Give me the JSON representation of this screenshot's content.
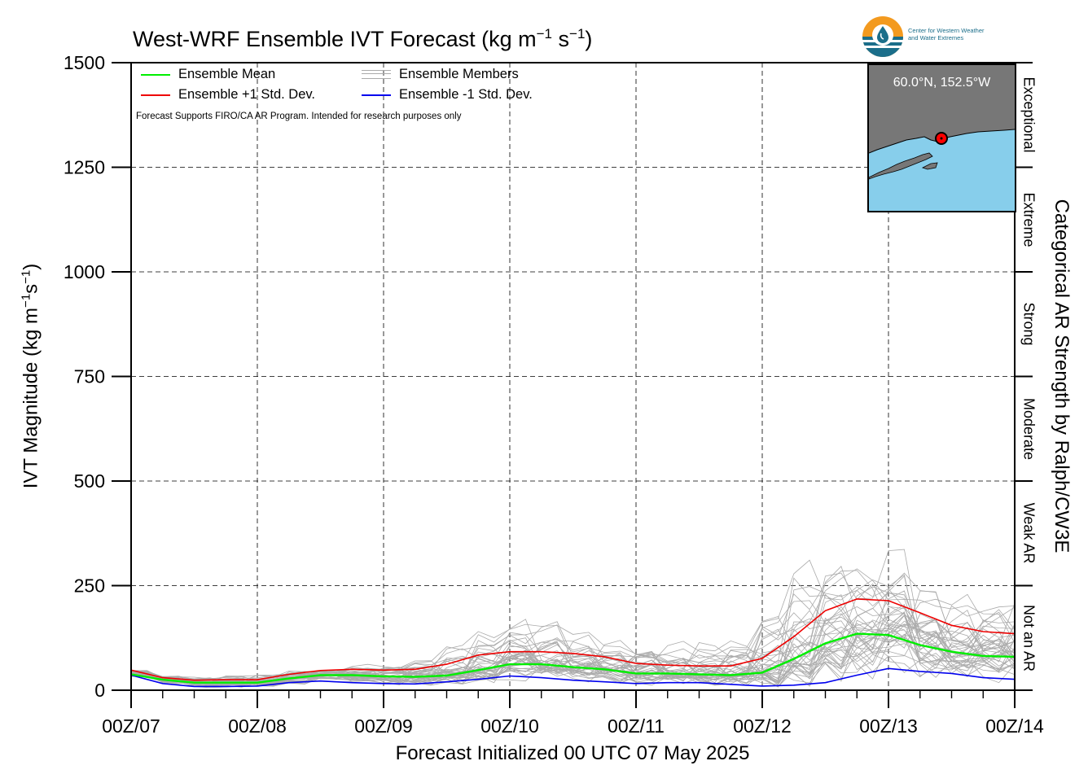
{
  "title": {
    "main": "West-WRF Ensemble IVT Forecast (kg m",
    "exp1": "−1",
    "mid": " s",
    "exp2": "−1",
    "end": ")"
  },
  "ylabel": {
    "main": "IVT Magnitude (kg m",
    "exp1": "−1",
    "mid": "s",
    "exp2": "−1",
    "end": ")"
  },
  "right_label": "Categorical AR Strength by Ralph/CW3E",
  "xlabel": "Forecast Initialized 00 UTC 07 May 2025",
  "legend": {
    "mean": "Ensemble Mean",
    "plus": "Ensemble +1 Std. Dev.",
    "members": "Ensemble Members",
    "minus": "Ensemble -1 Std. Dev."
  },
  "note": "Forecast Supports FIRO/CA AR Program. Intended for research purposes only",
  "logo": {
    "line1": "Center for Western Weather",
    "line2": "and Water Extremes"
  },
  "inset": {
    "coord": "60.0°N, 152.5°W",
    "ocean_color": "#87ceeb",
    "land_color": "#777777",
    "marker_color": "#ff0000"
  },
  "categories": [
    {
      "label": "Not an AR",
      "from": 0,
      "to": 250
    },
    {
      "label": "Weak AR",
      "from": 250,
      "to": 500
    },
    {
      "label": "Moderate",
      "from": 500,
      "to": 750
    },
    {
      "label": "Strong",
      "from": 750,
      "to": 1000
    },
    {
      "label": "Extreme",
      "from": 1000,
      "to": 1250
    },
    {
      "label": "Exceptional",
      "from": 1250,
      "to": 1500
    }
  ],
  "colors": {
    "mean": "#00ee00",
    "plus": "#ee0000",
    "minus": "#0000ee",
    "members": "#aaaaaa"
  },
  "chart_data": {
    "type": "line",
    "title": "West-WRF Ensemble IVT Forecast (kg m−1 s−1)",
    "xlabel": "Forecast Initialized 00 UTC 07 May 2025",
    "ylabel": "IVT Magnitude (kg m−1s−1)",
    "x_tick_labels": [
      "00Z/07",
      "00Z/08",
      "00Z/09",
      "00Z/10",
      "00Z/11",
      "00Z/12",
      "00Z/13",
      "00Z/14"
    ],
    "x_hours": [
      0,
      6,
      12,
      18,
      24,
      30,
      36,
      42,
      48,
      54,
      60,
      66,
      72,
      78,
      84,
      90,
      96,
      102,
      108,
      114,
      120,
      126,
      132,
      138,
      144,
      150,
      156,
      162,
      168
    ],
    "ylim": [
      0,
      1500
    ],
    "y_ticks": [
      0,
      250,
      500,
      750,
      1000,
      1250,
      1500
    ],
    "xlim_hours": [
      0,
      168
    ],
    "grid": true,
    "legend_position": "top-left",
    "series": [
      {
        "name": "Ensemble Mean",
        "color": "#00ee00",
        "values": [
          38,
          25,
          18,
          18,
          18,
          28,
          36,
          36,
          33,
          32,
          35,
          48,
          62,
          62,
          55,
          50,
          40,
          40,
          38,
          36,
          42,
          75,
          112,
          135,
          132,
          108,
          92,
          82,
          80
        ]
      },
      {
        "name": "Ensemble +1 Std. Dev.",
        "color": "#ee0000",
        "values": [
          48,
          30,
          24,
          25,
          25,
          38,
          47,
          50,
          48,
          50,
          62,
          84,
          92,
          92,
          88,
          80,
          64,
          60,
          58,
          58,
          76,
          128,
          190,
          218,
          214,
          185,
          155,
          140,
          135
        ]
      },
      {
        "name": "Ensemble -1 Std. Dev.",
        "color": "#0000ee",
        "values": [
          36,
          16,
          9,
          9,
          10,
          18,
          22,
          18,
          16,
          15,
          20,
          26,
          34,
          30,
          24,
          20,
          16,
          18,
          18,
          14,
          10,
          12,
          18,
          36,
          52,
          45,
          40,
          30,
          26
        ]
      }
    ],
    "members": {
      "name": "Ensemble Members",
      "count": 40,
      "min": [
        28,
        12,
        6,
        6,
        7,
        12,
        16,
        14,
        12,
        12,
        15,
        18,
        22,
        20,
        16,
        14,
        12,
        12,
        12,
        10,
        8,
        10,
        14,
        20,
        25,
        22,
        20,
        18,
        16
      ],
      "max": [
        52,
        40,
        38,
        42,
        45,
        55,
        62,
        65,
        70,
        95,
        140,
        190,
        210,
        200,
        160,
        150,
        140,
        135,
        150,
        170,
        260,
        400,
        380,
        370,
        400,
        320,
        280,
        270,
        260
      ]
    }
  }
}
